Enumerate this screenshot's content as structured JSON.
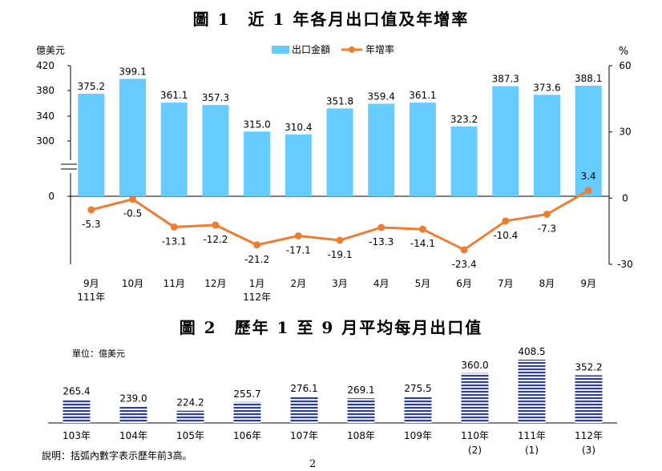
{
  "chart_data": [
    {
      "type": "bar",
      "title": "圖 1　近 1 年各月出口值及年增率",
      "categories": [
        [
          "9月",
          "111年"
        ],
        [
          "10月",
          ""
        ],
        [
          "11月",
          ""
        ],
        [
          "12月",
          ""
        ],
        [
          "1月",
          "112年"
        ],
        [
          "2月",
          ""
        ],
        [
          "3月",
          ""
        ],
        [
          "4月",
          ""
        ],
        [
          "5月",
          ""
        ],
        [
          "6月",
          ""
        ],
        [
          "7月",
          ""
        ],
        [
          "8月",
          ""
        ],
        [
          "9月",
          ""
        ]
      ],
      "y_left_label": "億美元",
      "y_right_label": "%",
      "y_left_ticks": [
        "420",
        "380",
        "340",
        "300",
        "0"
      ],
      "y_right_ticks": [
        "60",
        "30",
        "0",
        "-30"
      ],
      "y_left_axis_break": true,
      "ylim_left_upper": [
        270,
        420
      ],
      "ylim_right": [
        -30,
        60
      ],
      "legend": {
        "position": "top-center"
      },
      "series": [
        {
          "name": "出口金額",
          "type": "bar",
          "axis": "left",
          "color": "#66CCFF",
          "values": [
            375.2,
            399.1,
            361.1,
            357.3,
            315.0,
            310.4,
            351.8,
            359.4,
            361.1,
            323.2,
            387.3,
            373.6,
            388.1
          ],
          "labels": [
            "375.2",
            "399.1",
            "361.1",
            "357.3",
            "315.0",
            "310.4",
            "351.8",
            "359.4",
            "361.1",
            "323.2",
            "387.3",
            "373.6",
            "388.1"
          ]
        },
        {
          "name": "年增率",
          "type": "line",
          "axis": "right",
          "color": "#ED7D31",
          "values": [
            -5.3,
            -0.5,
            -13.1,
            -12.2,
            -21.2,
            -17.1,
            -19.1,
            -13.3,
            -14.1,
            -23.4,
            -10.4,
            -7.3,
            3.4
          ],
          "labels": [
            "-5.3",
            "-0.5",
            "-13.1",
            "-12.2",
            "-21.2",
            "-17.1",
            "-19.1",
            "-13.3",
            "-14.1",
            "-23.4",
            "-10.4",
            "-7.3",
            "3.4"
          ]
        }
      ]
    },
    {
      "type": "bar",
      "title": "圖 2　歷年 1 至 9 月平均每月出口值",
      "unit_label": "單位：億美元",
      "categories": [
        [
          "103年",
          ""
        ],
        [
          "104年",
          ""
        ],
        [
          "105年",
          ""
        ],
        [
          "106年",
          ""
        ],
        [
          "107年",
          ""
        ],
        [
          "108年",
          ""
        ],
        [
          "109年",
          ""
        ],
        [
          "110年",
          "(2)"
        ],
        [
          "111年",
          "(1)"
        ],
        [
          "112年",
          "(3)"
        ]
      ],
      "series": [
        {
          "type": "bar",
          "color": "#2E3F8F",
          "values": [
            265.4,
            239.0,
            224.2,
            255.7,
            276.1,
            269.1,
            275.5,
            360.0,
            408.5,
            352.2
          ],
          "labels": [
            "265.4",
            "239.0",
            "224.2",
            "255.7",
            "276.1",
            "269.1",
            "275.5",
            "360.0",
            "408.5",
            "352.2"
          ]
        }
      ]
    }
  ],
  "note": "說明：括弧內數字表示歷年前3高。",
  "page_number": "2"
}
